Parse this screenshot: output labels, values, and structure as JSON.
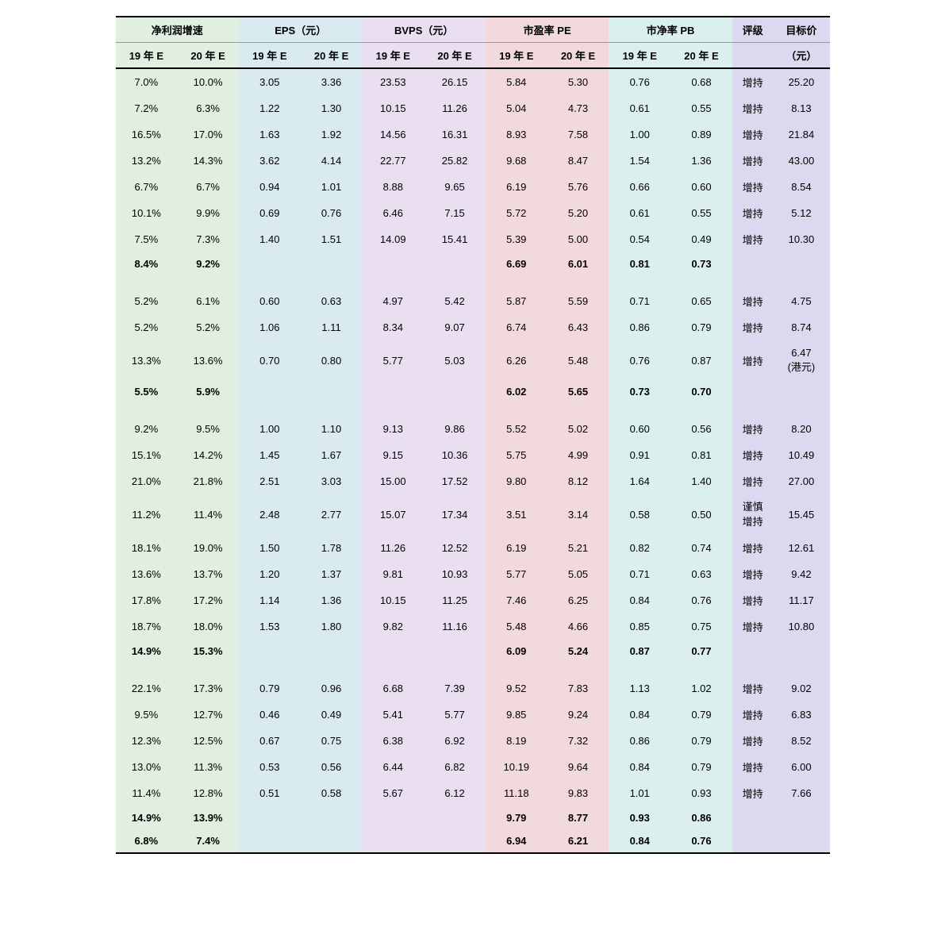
{
  "colors": {
    "profit": "#e0efe0",
    "eps": "#d9ebf0",
    "bvps": "#e9dff0",
    "pe": "#f2d9db",
    "pb": "#dcefef",
    "rating": "#dbd9ef",
    "target": "#dbd9ef",
    "border_strong": "#000000",
    "border_light": "#999999",
    "background": "#ffffff"
  },
  "typography": {
    "font_family": "SimSun, Microsoft YaHei, sans-serif",
    "font_size_base": 13,
    "header_weight": "bold"
  },
  "headers": {
    "row1": {
      "profit_growth": "净利润增速",
      "eps": "EPS（元）",
      "bvps": "BVPS（元）",
      "pe": "市盈率 PE",
      "pb": "市净率 PB",
      "rating": "评级",
      "target": "目标价"
    },
    "row2": {
      "y19": "19 年 E",
      "y20": "20 年 E",
      "target_unit": "（元）"
    }
  },
  "rows": [
    {
      "type": "data",
      "bold": false,
      "profit19": "7.0%",
      "profit20": "10.0%",
      "eps19": "3.05",
      "eps20": "3.36",
      "bvps19": "23.53",
      "bvps20": "26.15",
      "pe19": "5.84",
      "pe20": "5.30",
      "pb19": "0.76",
      "pb20": "0.68",
      "rating": "增持",
      "target": "25.20"
    },
    {
      "type": "data",
      "bold": false,
      "profit19": "7.2%",
      "profit20": "6.3%",
      "eps19": "1.22",
      "eps20": "1.30",
      "bvps19": "10.15",
      "bvps20": "11.26",
      "pe19": "5.04",
      "pe20": "4.73",
      "pb19": "0.61",
      "pb20": "0.55",
      "rating": "增持",
      "target": "8.13"
    },
    {
      "type": "data",
      "bold": false,
      "profit19": "16.5%",
      "profit20": "17.0%",
      "eps19": "1.63",
      "eps20": "1.92",
      "bvps19": "14.56",
      "bvps20": "16.31",
      "pe19": "8.93",
      "pe20": "7.58",
      "pb19": "1.00",
      "pb20": "0.89",
      "rating": "增持",
      "target": "21.84"
    },
    {
      "type": "data",
      "bold": false,
      "profit19": "13.2%",
      "profit20": "14.3%",
      "eps19": "3.62",
      "eps20": "4.14",
      "bvps19": "22.77",
      "bvps20": "25.82",
      "pe19": "9.68",
      "pe20": "8.47",
      "pb19": "1.54",
      "pb20": "1.36",
      "rating": "增持",
      "target": "43.00"
    },
    {
      "type": "data",
      "bold": false,
      "profit19": "6.7%",
      "profit20": "6.7%",
      "eps19": "0.94",
      "eps20": "1.01",
      "bvps19": "8.88",
      "bvps20": "9.65",
      "pe19": "6.19",
      "pe20": "5.76",
      "pb19": "0.66",
      "pb20": "0.60",
      "rating": "增持",
      "target": "8.54"
    },
    {
      "type": "data",
      "bold": false,
      "profit19": "10.1%",
      "profit20": "9.9%",
      "eps19": "0.69",
      "eps20": "0.76",
      "bvps19": "6.46",
      "bvps20": "7.15",
      "pe19": "5.72",
      "pe20": "5.20",
      "pb19": "0.61",
      "pb20": "0.55",
      "rating": "增持",
      "target": "5.12"
    },
    {
      "type": "data",
      "bold": false,
      "profit19": "7.5%",
      "profit20": "7.3%",
      "eps19": "1.40",
      "eps20": "1.51",
      "bvps19": "14.09",
      "bvps20": "15.41",
      "pe19": "5.39",
      "pe20": "5.00",
      "pb19": "0.54",
      "pb20": "0.49",
      "rating": "增持",
      "target": "10.30"
    },
    {
      "type": "data",
      "bold": true,
      "profit19": "8.4%",
      "profit20": "9.2%",
      "eps19": "",
      "eps20": "",
      "bvps19": "",
      "bvps20": "",
      "pe19": "6.69",
      "pe20": "6.01",
      "pb19": "0.81",
      "pb20": "0.73",
      "rating": "",
      "target": ""
    },
    {
      "type": "spacer"
    },
    {
      "type": "data",
      "bold": false,
      "profit19": "5.2%",
      "profit20": "6.1%",
      "eps19": "0.60",
      "eps20": "0.63",
      "bvps19": "4.97",
      "bvps20": "5.42",
      "pe19": "5.87",
      "pe20": "5.59",
      "pb19": "0.71",
      "pb20": "0.65",
      "rating": "增持",
      "target": "4.75"
    },
    {
      "type": "data",
      "bold": false,
      "profit19": "5.2%",
      "profit20": "5.2%",
      "eps19": "1.06",
      "eps20": "1.11",
      "bvps19": "8.34",
      "bvps20": "9.07",
      "pe19": "6.74",
      "pe20": "6.43",
      "pb19": "0.86",
      "pb20": "0.79",
      "rating": "增持",
      "target": "8.74"
    },
    {
      "type": "data",
      "bold": false,
      "profit19": "13.3%",
      "profit20": "13.6%",
      "eps19": "0.70",
      "eps20": "0.80",
      "bvps19": "5.77",
      "bvps20": "5.03",
      "pe19": "6.26",
      "pe20": "5.48",
      "pb19": "0.76",
      "pb20": "0.87",
      "rating": "增持",
      "target": "6.47\n(港元)"
    },
    {
      "type": "data",
      "bold": true,
      "profit19": "5.5%",
      "profit20": "5.9%",
      "eps19": "",
      "eps20": "",
      "bvps19": "",
      "bvps20": "",
      "pe19": "6.02",
      "pe20": "5.65",
      "pb19": "0.73",
      "pb20": "0.70",
      "rating": "",
      "target": ""
    },
    {
      "type": "spacer"
    },
    {
      "type": "data",
      "bold": false,
      "profit19": "9.2%",
      "profit20": "9.5%",
      "eps19": "1.00",
      "eps20": "1.10",
      "bvps19": "9.13",
      "bvps20": "9.86",
      "pe19": "5.52",
      "pe20": "5.02",
      "pb19": "0.60",
      "pb20": "0.56",
      "rating": "增持",
      "target": "8.20"
    },
    {
      "type": "data",
      "bold": false,
      "profit19": "15.1%",
      "profit20": "14.2%",
      "eps19": "1.45",
      "eps20": "1.67",
      "bvps19": "9.15",
      "bvps20": "10.36",
      "pe19": "5.75",
      "pe20": "4.99",
      "pb19": "0.91",
      "pb20": "0.81",
      "rating": "增持",
      "target": "10.49"
    },
    {
      "type": "data",
      "bold": false,
      "profit19": "21.0%",
      "profit20": "21.8%",
      "eps19": "2.51",
      "eps20": "3.03",
      "bvps19": "15.00",
      "bvps20": "17.52",
      "pe19": "9.80",
      "pe20": "8.12",
      "pb19": "1.64",
      "pb20": "1.40",
      "rating": "增持",
      "target": "27.00"
    },
    {
      "type": "data",
      "bold": false,
      "profit19": "11.2%",
      "profit20": "11.4%",
      "eps19": "2.48",
      "eps20": "2.77",
      "bvps19": "15.07",
      "bvps20": "17.34",
      "pe19": "3.51",
      "pe20": "3.14",
      "pb19": "0.58",
      "pb20": "0.50",
      "rating": "谨慎\n增持",
      "target": "15.45"
    },
    {
      "type": "data",
      "bold": false,
      "profit19": "18.1%",
      "profit20": "19.0%",
      "eps19": "1.50",
      "eps20": "1.78",
      "bvps19": "11.26",
      "bvps20": "12.52",
      "pe19": "6.19",
      "pe20": "5.21",
      "pb19": "0.82",
      "pb20": "0.74",
      "rating": "增持",
      "target": "12.61"
    },
    {
      "type": "data",
      "bold": false,
      "profit19": "13.6%",
      "profit20": "13.7%",
      "eps19": "1.20",
      "eps20": "1.37",
      "bvps19": "9.81",
      "bvps20": "10.93",
      "pe19": "5.77",
      "pe20": "5.05",
      "pb19": "0.71",
      "pb20": "0.63",
      "rating": "增持",
      "target": "9.42"
    },
    {
      "type": "data",
      "bold": false,
      "profit19": "17.8%",
      "profit20": "17.2%",
      "eps19": "1.14",
      "eps20": "1.36",
      "bvps19": "10.15",
      "bvps20": "11.25",
      "pe19": "7.46",
      "pe20": "6.25",
      "pb19": "0.84",
      "pb20": "0.76",
      "rating": "增持",
      "target": "11.17"
    },
    {
      "type": "data",
      "bold": false,
      "profit19": "18.7%",
      "profit20": "18.0%",
      "eps19": "1.53",
      "eps20": "1.80",
      "bvps19": "9.82",
      "bvps20": "11.16",
      "pe19": "5.48",
      "pe20": "4.66",
      "pb19": "0.85",
      "pb20": "0.75",
      "rating": "增持",
      "target": "10.80"
    },
    {
      "type": "data",
      "bold": true,
      "profit19": "14.9%",
      "profit20": "15.3%",
      "eps19": "",
      "eps20": "",
      "bvps19": "",
      "bvps20": "",
      "pe19": "6.09",
      "pe20": "5.24",
      "pb19": "0.87",
      "pb20": "0.77",
      "rating": "",
      "target": ""
    },
    {
      "type": "spacer"
    },
    {
      "type": "data",
      "bold": false,
      "profit19": "22.1%",
      "profit20": "17.3%",
      "eps19": "0.79",
      "eps20": "0.96",
      "bvps19": "6.68",
      "bvps20": "7.39",
      "pe19": "9.52",
      "pe20": "7.83",
      "pb19": "1.13",
      "pb20": "1.02",
      "rating": "增持",
      "target": "9.02"
    },
    {
      "type": "data",
      "bold": false,
      "profit19": "9.5%",
      "profit20": "12.7%",
      "eps19": "0.46",
      "eps20": "0.49",
      "bvps19": "5.41",
      "bvps20": "5.77",
      "pe19": "9.85",
      "pe20": "9.24",
      "pb19": "0.84",
      "pb20": "0.79",
      "rating": "增持",
      "target": "6.83"
    },
    {
      "type": "data",
      "bold": false,
      "profit19": "12.3%",
      "profit20": "12.5%",
      "eps19": "0.67",
      "eps20": "0.75",
      "bvps19": "6.38",
      "bvps20": "6.92",
      "pe19": "8.19",
      "pe20": "7.32",
      "pb19": "0.86",
      "pb20": "0.79",
      "rating": "增持",
      "target": "8.52"
    },
    {
      "type": "data",
      "bold": false,
      "profit19": "13.0%",
      "profit20": "11.3%",
      "eps19": "0.53",
      "eps20": "0.56",
      "bvps19": "6.44",
      "bvps20": "6.82",
      "pe19": "10.19",
      "pe20": "9.64",
      "pb19": "0.84",
      "pb20": "0.79",
      "rating": "增持",
      "target": "6.00"
    },
    {
      "type": "data",
      "bold": false,
      "profit19": "11.4%",
      "profit20": "12.8%",
      "eps19": "0.51",
      "eps20": "0.58",
      "bvps19": "5.67",
      "bvps20": "6.12",
      "pe19": "11.18",
      "pe20": "9.83",
      "pb19": "1.01",
      "pb20": "0.93",
      "rating": "增持",
      "target": "7.66"
    },
    {
      "type": "data",
      "bold": true,
      "profit19": "14.9%",
      "profit20": "13.9%",
      "eps19": "",
      "eps20": "",
      "bvps19": "",
      "bvps20": "",
      "pe19": "9.79",
      "pe20": "8.77",
      "pb19": "0.93",
      "pb20": "0.86",
      "rating": "",
      "target": ""
    },
    {
      "type": "data",
      "bold": true,
      "last": true,
      "profit19": "6.8%",
      "profit20": "7.4%",
      "eps19": "",
      "eps20": "",
      "bvps19": "",
      "bvps20": "",
      "pe19": "6.94",
      "pe20": "6.21",
      "pb19": "0.84",
      "pb20": "0.76",
      "rating": "",
      "target": ""
    }
  ]
}
